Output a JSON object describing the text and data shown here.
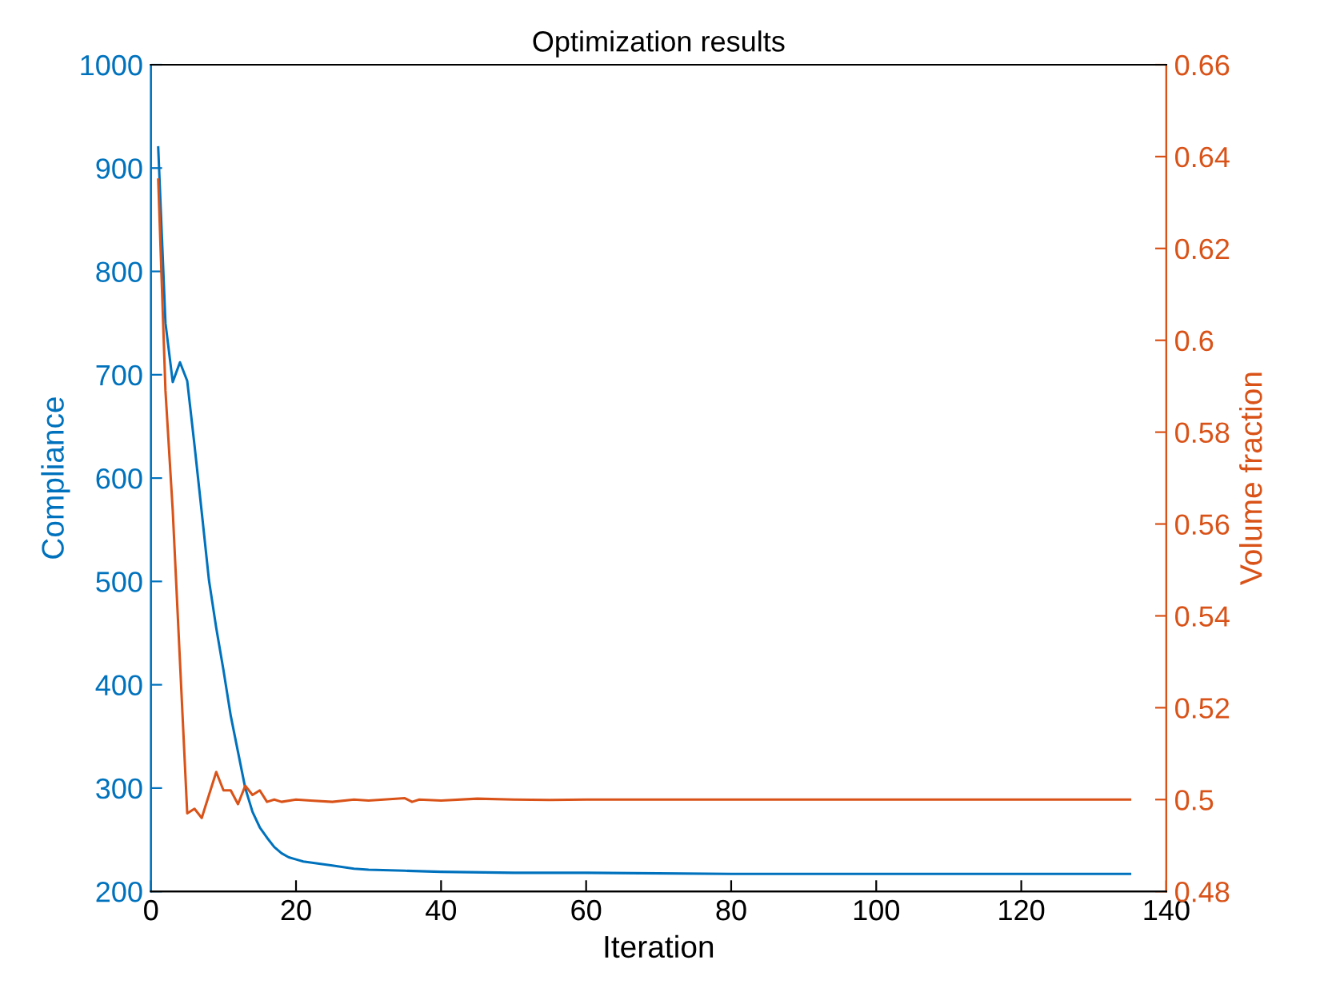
{
  "chart_data": {
    "type": "line",
    "title": "Optimization results",
    "xlabel": "Iteration",
    "ylabel": "Compliance",
    "y2label": "Volume fraction",
    "xlim": [
      0,
      140
    ],
    "xticks": [
      0,
      20,
      40,
      60,
      80,
      100,
      120,
      140
    ],
    "ylim": [
      200,
      1000
    ],
    "yticks": [
      200,
      300,
      400,
      500,
      600,
      700,
      800,
      900,
      1000
    ],
    "y2lim": [
      0.48,
      0.66
    ],
    "y2ticks": [
      0.48,
      0.5,
      0.52,
      0.54,
      0.56,
      0.58,
      0.6,
      0.62,
      0.64,
      0.66
    ],
    "grid": false,
    "legend": false,
    "marker": "none",
    "line_style": "solid",
    "series": [
      {
        "color": "#0072bd",
        "axis": "y",
        "x": [
          1,
          2,
          3,
          4,
          5,
          6,
          7,
          8,
          9,
          10,
          11,
          12,
          13,
          14,
          15,
          16,
          17,
          18,
          19,
          20,
          21,
          23,
          25,
          28,
          30,
          35,
          40,
          50,
          60,
          80,
          100,
          120,
          135
        ],
        "values": [
          920,
          750,
          693,
          712,
          694,
          632,
          567,
          501,
          455,
          414,
          370,
          335,
          300,
          277,
          262,
          252,
          243,
          237,
          233,
          231,
          229,
          227,
          225,
          222,
          221,
          220,
          219,
          218,
          218,
          217,
          217,
          217,
          217
        ]
      },
      {
        "color": "#d95319",
        "axis": "y2",
        "x": [
          1,
          2,
          3,
          4,
          5,
          6,
          7,
          8,
          9,
          10,
          11,
          12,
          13,
          14,
          15,
          16,
          17,
          18,
          20,
          22,
          25,
          28,
          30,
          35,
          36,
          37,
          40,
          45,
          50,
          55,
          60,
          80,
          100,
          120,
          135
        ],
        "values": [
          0.635,
          0.589,
          0.563,
          0.53,
          0.497,
          0.498,
          0.496,
          0.501,
          0.506,
          0.502,
          0.502,
          0.499,
          0.503,
          0.501,
          0.502,
          0.4995,
          0.5,
          0.4995,
          0.5,
          0.4998,
          0.4995,
          0.5,
          0.4998,
          0.5003,
          0.4995,
          0.5,
          0.4998,
          0.5002,
          0.5,
          0.4999,
          0.5,
          0.5,
          0.5,
          0.5,
          0.5
        ]
      }
    ]
  }
}
